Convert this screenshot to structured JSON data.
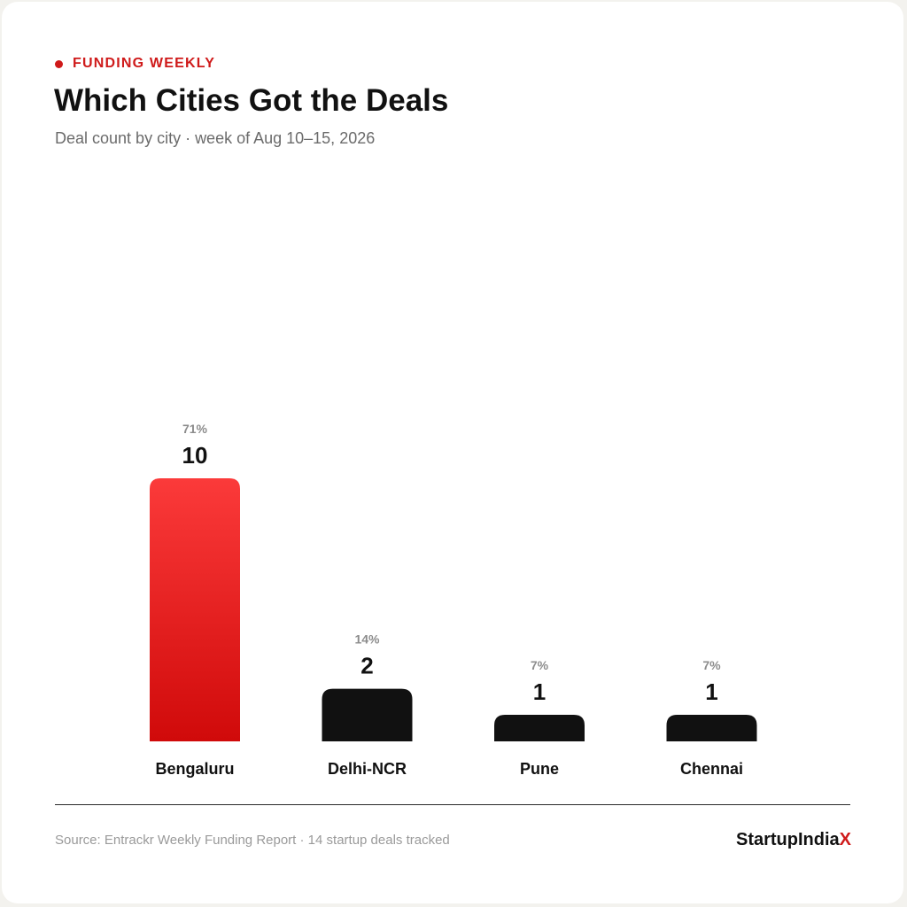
{
  "kicker": "FUNDING WEEKLY",
  "title": "Which Cities Got the Deals",
  "subtitle": "Deal count by city · week of Aug 10–15, 2026",
  "footer": {
    "source": "Source: Entrackr Weekly Funding Report · 14 startup deals tracked",
    "brand_main": "StartupIndia",
    "brand_accent": "X"
  },
  "colors": {
    "accent": "#cf1a1a",
    "highlight_bar_top": "#fb3a3a",
    "highlight_bar_bottom": "#d00a0a",
    "bar": "#111111",
    "percent_label": "#8c8c8c",
    "text": "#111111"
  },
  "chart_data": {
    "type": "bar",
    "categories": [
      "Bengaluru",
      "Delhi-NCR",
      "Pune",
      "Chennai"
    ],
    "values": [
      10,
      2,
      1,
      1
    ],
    "percent_labels": [
      "71%",
      "14%",
      "7%",
      "7%"
    ],
    "highlight_index": 0,
    "ylim": [
      0,
      10
    ],
    "grid": false,
    "legend": "none",
    "xlabel": "",
    "ylabel": ""
  }
}
